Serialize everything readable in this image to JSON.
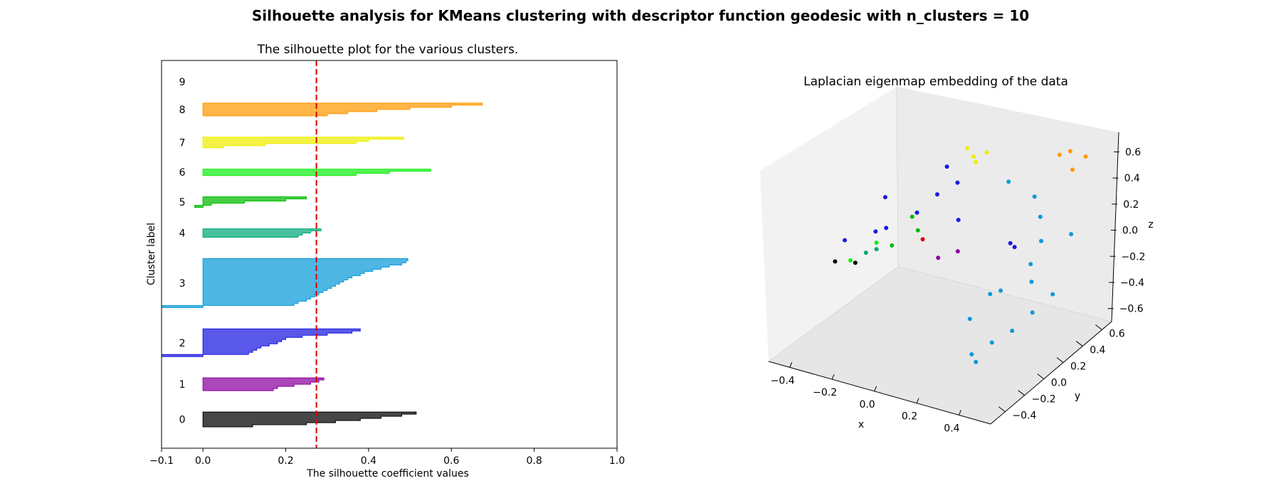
{
  "suptitle": "Silhouette analysis for KMeans clustering with descriptor function geodesic with n_clusters = 10",
  "chart_data": [
    {
      "type": "area",
      "title": "The silhouette plot for the various clusters.",
      "xlabel": "The silhouette coefficient values",
      "ylabel": "Cluster label",
      "xlim": [
        -0.1,
        1.0
      ],
      "xticks": [
        "−0.1",
        "0.0",
        "0.2",
        "0.4",
        "0.6",
        "0.8",
        "1.0"
      ],
      "xtick_values": [
        -0.1,
        0.0,
        0.2,
        0.4,
        0.6,
        0.8,
        1.0
      ],
      "average_silhouette": 0.274,
      "average_line_color": "#dd0000",
      "clusters": [
        {
          "label": "0",
          "color": "#000000",
          "values": [
            0.515,
            0.48,
            0.43,
            0.38,
            0.32,
            0.25,
            0.12
          ]
        },
        {
          "label": "1",
          "color": "#8a00a0",
          "values": [
            0.292,
            0.28,
            0.26,
            0.22,
            0.18,
            0.17
          ]
        },
        {
          "label": "2",
          "color": "#1a18e0",
          "values": [
            0.38,
            0.36,
            0.3,
            0.24,
            0.2,
            0.19,
            0.18,
            0.16,
            0.14,
            0.13,
            0.12,
            0.11,
            -0.1
          ]
        },
        {
          "label": "3",
          "color": "#0a9ad8",
          "values": [
            0.495,
            0.49,
            0.48,
            0.45,
            0.43,
            0.41,
            0.39,
            0.38,
            0.36,
            0.35,
            0.34,
            0.33,
            0.32,
            0.31,
            0.3,
            0.29,
            0.28,
            0.27,
            0.26,
            0.25,
            0.23,
            0.22,
            -0.1
          ]
        },
        {
          "label": "4",
          "color": "#00a878",
          "values": [
            0.285,
            0.26,
            0.24,
            0.23
          ]
        },
        {
          "label": "5",
          "color": "#00bb00",
          "values": [
            0.25,
            0.2,
            0.1,
            0.02,
            -0.02
          ]
        },
        {
          "label": "6",
          "color": "#11ee11",
          "values": [
            0.55,
            0.45,
            0.37
          ]
        },
        {
          "label": "7",
          "color": "#eeee00",
          "values": [
            0.485,
            0.4,
            0.37,
            0.15,
            0.05
          ]
        },
        {
          "label": "8",
          "color": "#ff9900",
          "values": [
            0.675,
            0.6,
            0.5,
            0.42,
            0.35,
            0.3
          ]
        },
        {
          "label": "9",
          "color": "#e0e0e0",
          "values": []
        }
      ]
    },
    {
      "type": "scatter",
      "title": "Laplacian eigenmap embedding of the data",
      "xlabel": "x",
      "ylabel": "y",
      "zlabel": "z",
      "xlim": [
        -0.5,
        0.55
      ],
      "ylim": [
        -0.55,
        0.7
      ],
      "zlim": [
        -0.7,
        0.75
      ],
      "xticks": [
        "−0.4",
        "−0.2",
        "0.0",
        "0.2",
        "0.4"
      ],
      "xtick_values": [
        -0.4,
        -0.2,
        0.0,
        0.2,
        0.4
      ],
      "yticks": [
        "−0.4",
        "−0.2",
        "0.0",
        "0.2",
        "0.4",
        "0.6"
      ],
      "ytick_values": [
        -0.4,
        -0.2,
        0.0,
        0.2,
        0.4,
        0.6
      ],
      "zticks": [
        "−0.6",
        "−0.4",
        "−0.2",
        "0.0",
        "0.2",
        "0.4",
        "0.6"
      ],
      "ztick_values": [
        -0.6,
        -0.4,
        -0.2,
        0.0,
        0.2,
        0.4,
        0.6
      ],
      "cluster_colors": [
        "#000000",
        "#8a00a0",
        "#1a18e0",
        "#0a9ad8",
        "#00a878",
        "#00bb00",
        "#11ee11",
        "#eeee00",
        "#ff9900",
        "#dd0000"
      ],
      "points": [
        {
          "x": -0.3,
          "y": -0.3,
          "z": 0.0,
          "cluster": 0
        },
        {
          "x": -0.25,
          "y": -0.2,
          "z": -0.05,
          "cluster": 0
        },
        {
          "x": 0.05,
          "y": 0.0,
          "z": 0.0,
          "cluster": 1
        },
        {
          "x": 0.12,
          "y": 0.05,
          "z": 0.05,
          "cluster": 1
        },
        {
          "x": -0.3,
          "y": -0.2,
          "z": 0.1,
          "cluster": 2
        },
        {
          "x": -0.2,
          "y": -0.1,
          "z": 0.15,
          "cluster": 2
        },
        {
          "x": -0.15,
          "y": -0.1,
          "z": 0.2,
          "cluster": 2
        },
        {
          "x": -0.2,
          "y": 0.0,
          "z": 0.35,
          "cluster": 2
        },
        {
          "x": -0.05,
          "y": 0.0,
          "z": 0.3,
          "cluster": 2
        },
        {
          "x": 0.0,
          "y": 0.1,
          "z": 0.4,
          "cluster": 2
        },
        {
          "x": 0.0,
          "y": 0.2,
          "z": 0.55,
          "cluster": 2
        },
        {
          "x": 0.05,
          "y": 0.2,
          "z": 0.45,
          "cluster": 2
        },
        {
          "x": 0.1,
          "y": 0.1,
          "z": 0.25,
          "cluster": 2
        },
        {
          "x": 0.3,
          "y": 0.2,
          "z": 0.1,
          "cluster": 2
        },
        {
          "x": 0.32,
          "y": 0.2,
          "z": 0.08,
          "cluster": 2
        },
        {
          "x": 0.2,
          "y": 0.4,
          "z": 0.4,
          "cluster": 3
        },
        {
          "x": 0.3,
          "y": 0.45,
          "z": 0.3,
          "cluster": 3
        },
        {
          "x": 0.35,
          "y": 0.4,
          "z": 0.2,
          "cluster": 3
        },
        {
          "x": 0.4,
          "y": 0.3,
          "z": 0.1,
          "cluster": 3
        },
        {
          "x": 0.45,
          "y": 0.5,
          "z": 0.05,
          "cluster": 3
        },
        {
          "x": 0.35,
          "y": 0.3,
          "z": -0.1,
          "cluster": 3
        },
        {
          "x": 0.4,
          "y": 0.2,
          "z": -0.15,
          "cluster": 3
        },
        {
          "x": 0.3,
          "y": 0.1,
          "z": -0.2,
          "cluster": 3
        },
        {
          "x": 0.25,
          "y": 0.1,
          "z": -0.25,
          "cluster": 3
        },
        {
          "x": 0.2,
          "y": 0.0,
          "z": -0.4,
          "cluster": 3
        },
        {
          "x": 0.35,
          "y": -0.1,
          "z": -0.45,
          "cluster": 3
        },
        {
          "x": 0.4,
          "y": 0.0,
          "z": -0.4,
          "cluster": 3
        },
        {
          "x": 0.3,
          "y": -0.2,
          "z": -0.5,
          "cluster": 3
        },
        {
          "x": 0.32,
          "y": -0.2,
          "z": -0.55,
          "cluster": 3
        },
        {
          "x": 0.45,
          "y": 0.1,
          "z": -0.3,
          "cluster": 3
        },
        {
          "x": 0.5,
          "y": 0.2,
          "z": -0.2,
          "cluster": 3
        },
        {
          "x": -0.15,
          "y": -0.2,
          "z": 0.1,
          "cluster": 4
        },
        {
          "x": -0.2,
          "y": -0.2,
          "z": 0.05,
          "cluster": 4
        },
        {
          "x": -0.1,
          "y": -0.15,
          "z": 0.12,
          "cluster": 5
        },
        {
          "x": 0.0,
          "y": -0.1,
          "z": 0.25,
          "cluster": 5
        },
        {
          "x": -0.05,
          "y": -0.05,
          "z": 0.3,
          "cluster": 5
        },
        {
          "x": -0.25,
          "y": -0.25,
          "z": 0.0,
          "cluster": 6
        },
        {
          "x": -0.15,
          "y": -0.2,
          "z": 0.15,
          "cluster": 6
        },
        {
          "x": 0.05,
          "y": 0.3,
          "z": 0.65,
          "cluster": 7
        },
        {
          "x": 0.08,
          "y": 0.3,
          "z": 0.6,
          "cluster": 7
        },
        {
          "x": 0.1,
          "y": 0.28,
          "z": 0.58,
          "cluster": 7
        },
        {
          "x": 0.12,
          "y": 0.35,
          "z": 0.62,
          "cluster": 7
        },
        {
          "x": 0.35,
          "y": 0.6,
          "z": 0.55,
          "cluster": 8
        },
        {
          "x": 0.4,
          "y": 0.6,
          "z": 0.6,
          "cluster": 8
        },
        {
          "x": 0.45,
          "y": 0.65,
          "z": 0.55,
          "cluster": 8
        },
        {
          "x": 0.42,
          "y": 0.58,
          "z": 0.48,
          "cluster": 8
        },
        {
          "x": 0.0,
          "y": -0.05,
          "z": 0.15,
          "cluster": 9
        }
      ]
    }
  ]
}
